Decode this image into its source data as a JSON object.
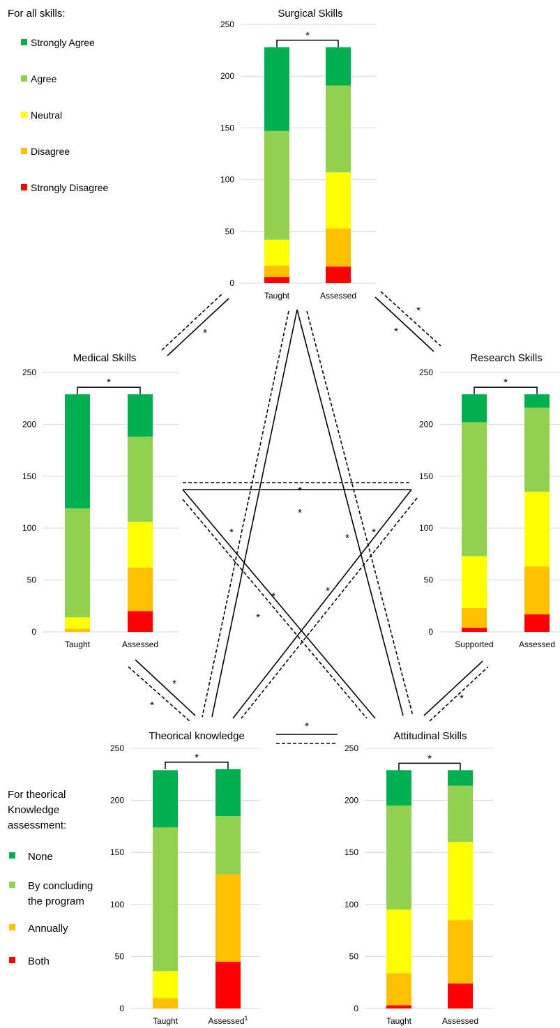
{
  "legend_all": {
    "title": "For all skills:",
    "items": [
      {
        "label": "Strongly Agree",
        "color": "#00b050"
      },
      {
        "label": "Agree",
        "color": "#92d050"
      },
      {
        "label": "Neutral",
        "color": "#ffff00"
      },
      {
        "label": "Disagree",
        "color": "#ffc000"
      },
      {
        "label": "Strongly Disagree",
        "color": "#ff0000"
      }
    ]
  },
  "legend_theory": {
    "title_lines": [
      "For theorical",
      "Knowledge",
      "assessment:"
    ],
    "items": [
      {
        "lines": [
          "None"
        ],
        "color": "#00b050"
      },
      {
        "lines": [
          "By concluding",
          "the program"
        ],
        "color": "#92d050"
      },
      {
        "lines": [
          "Annually"
        ],
        "color": "#ffc000"
      },
      {
        "lines": [
          "Both"
        ],
        "color": "#ff0000"
      }
    ]
  },
  "significance_marker": "*",
  "chart_data": [
    {
      "id": "surgical",
      "type": "bar",
      "stacked": true,
      "title": "Surgical Skills",
      "categories": [
        "Taught",
        "Assessed"
      ],
      "ylim": [
        0,
        250
      ],
      "yticks": [
        0,
        50,
        100,
        150,
        200,
        250
      ],
      "significance": "*",
      "series": [
        {
          "name": "Strongly Disagree",
          "color": "#ff0000",
          "values": [
            6,
            16
          ]
        },
        {
          "name": "Disagree",
          "color": "#ffc000",
          "values": [
            11,
            37
          ]
        },
        {
          "name": "Neutral",
          "color": "#ffff00",
          "values": [
            25,
            54
          ]
        },
        {
          "name": "Agree",
          "color": "#92d050",
          "values": [
            105,
            84
          ]
        },
        {
          "name": "Strongly Agree",
          "color": "#00b050",
          "values": [
            81,
            37
          ]
        }
      ]
    },
    {
      "id": "medical",
      "type": "bar",
      "stacked": true,
      "title": "Medical Skills",
      "categories": [
        "Taught",
        "Assessed"
      ],
      "ylim": [
        0,
        250
      ],
      "yticks": [
        0,
        50,
        100,
        150,
        200,
        250
      ],
      "significance": "*",
      "series": [
        {
          "name": "Strongly Disagree",
          "color": "#ff0000",
          "values": [
            0,
            20
          ]
        },
        {
          "name": "Disagree",
          "color": "#ffc000",
          "values": [
            3,
            42
          ]
        },
        {
          "name": "Neutral",
          "color": "#ffff00",
          "values": [
            11,
            44
          ]
        },
        {
          "name": "Agree",
          "color": "#92d050",
          "values": [
            105,
            82
          ]
        },
        {
          "name": "Strongly Agree",
          "color": "#00b050",
          "values": [
            110,
            41
          ]
        }
      ]
    },
    {
      "id": "research",
      "type": "bar",
      "stacked": true,
      "title": "Research Skills",
      "categories": [
        "Supported",
        "Assessed"
      ],
      "ylim": [
        0,
        250
      ],
      "yticks": [
        0,
        50,
        100,
        150,
        200,
        250
      ],
      "significance": "*",
      "series": [
        {
          "name": "Strongly Disagree",
          "color": "#ff0000",
          "values": [
            4,
            17
          ]
        },
        {
          "name": "Disagree",
          "color": "#ffc000",
          "values": [
            19,
            46
          ]
        },
        {
          "name": "Neutral",
          "color": "#ffff00",
          "values": [
            50,
            72
          ]
        },
        {
          "name": "Agree",
          "color": "#92d050",
          "values": [
            129,
            81
          ]
        },
        {
          "name": "Strongly Agree",
          "color": "#00b050",
          "values": [
            27,
            13
          ]
        }
      ]
    },
    {
      "id": "theory",
      "type": "bar",
      "stacked": true,
      "title": "Theorical knowledge",
      "categories": [
        "Taught",
        "Assessed"
      ],
      "category_footnote": [
        "",
        "1"
      ],
      "ylim": [
        0,
        250
      ],
      "yticks": [
        0,
        50,
        100,
        150,
        200,
        250
      ],
      "significance": "*",
      "series": [
        {
          "name": "Strongly Disagree",
          "color": "#ff0000",
          "values": [
            0,
            45
          ]
        },
        {
          "name": "Disagree",
          "color": "#ffc000",
          "values": [
            10,
            84
          ]
        },
        {
          "name": "Neutral",
          "color": "#ffff00",
          "values": [
            26,
            0
          ]
        },
        {
          "name": "Agree",
          "color": "#92d050",
          "values": [
            138,
            56
          ]
        },
        {
          "name": "Strongly Agree",
          "color": "#00b050",
          "values": [
            55,
            45
          ]
        }
      ]
    },
    {
      "id": "attitudinal",
      "type": "bar",
      "stacked": true,
      "title": "Attitudinal Skills",
      "categories": [
        "Taught",
        "Assessed"
      ],
      "ylim": [
        0,
        250
      ],
      "yticks": [
        0,
        50,
        100,
        150,
        200,
        250
      ],
      "significance": "*",
      "series": [
        {
          "name": "Strongly Disagree",
          "color": "#ff0000",
          "values": [
            3,
            24
          ]
        },
        {
          "name": "Disagree",
          "color": "#ffc000",
          "values": [
            31,
            61
          ]
        },
        {
          "name": "Neutral",
          "color": "#ffff00",
          "values": [
            61,
            75
          ]
        },
        {
          "name": "Agree",
          "color": "#92d050",
          "values": [
            100,
            54
          ]
        },
        {
          "name": "Strongly Agree",
          "color": "#00b050",
          "values": [
            34,
            15
          ]
        }
      ]
    }
  ]
}
